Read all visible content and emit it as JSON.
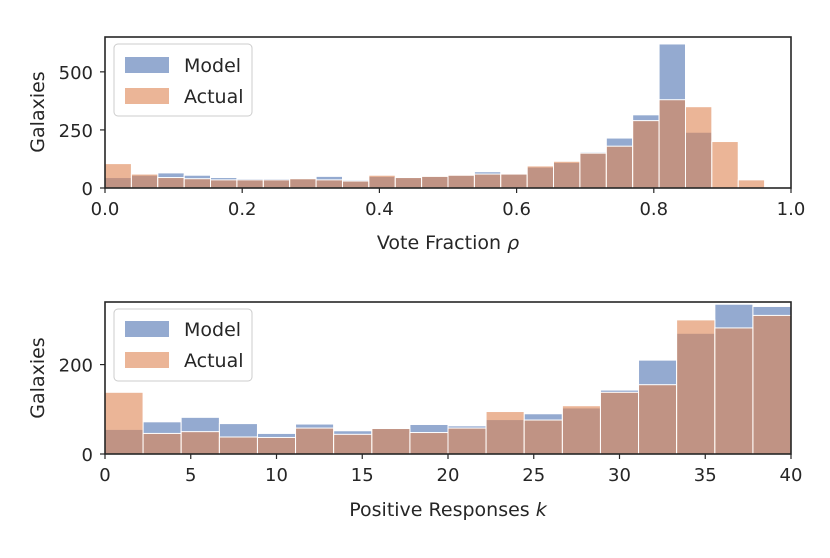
{
  "colors": {
    "model": "#4c72b0",
    "actual": "#dd8452",
    "axis": "#262626"
  },
  "chart_data": [
    {
      "type": "bar",
      "title": "",
      "xlabel": "Vote Fraction ",
      "xlabel_symbol": "ρ",
      "ylabel": "Galaxies",
      "xlim": [
        0.0,
        1.0
      ],
      "ylim": [
        0,
        650
      ],
      "xticks": [
        0.0,
        0.2,
        0.4,
        0.6,
        0.8,
        1.0
      ],
      "xtick_labels": [
        "0.0",
        "0.2",
        "0.4",
        "0.6",
        "0.8",
        "1.0"
      ],
      "yticks": [
        0,
        250,
        500
      ],
      "ytick_labels": [
        "0",
        "250",
        "500"
      ],
      "legend": {
        "position": "top-left",
        "entries": [
          "Model",
          "Actual"
        ]
      },
      "bin_edges": [
        0.0,
        0.0385,
        0.0769,
        0.1154,
        0.1538,
        0.1923,
        0.2308,
        0.2692,
        0.3077,
        0.3462,
        0.3846,
        0.4231,
        0.4615,
        0.5,
        0.5385,
        0.5769,
        0.6154,
        0.6538,
        0.6923,
        0.7308,
        0.7692,
        0.8077,
        0.8462,
        0.8846,
        0.9231,
        0.9615,
        1.0
      ],
      "series": [
        {
          "name": "Model",
          "values": [
            45,
            55,
            65,
            55,
            45,
            40,
            40,
            40,
            50,
            35,
            50,
            45,
            50,
            55,
            70,
            60,
            90,
            110,
            155,
            215,
            315,
            620,
            240,
            0,
            0,
            0
          ]
        },
        {
          "name": "Actual",
          "values": [
            105,
            60,
            45,
            40,
            35,
            35,
            35,
            40,
            35,
            30,
            55,
            45,
            50,
            55,
            60,
            60,
            95,
            115,
            150,
            180,
            290,
            380,
            350,
            200,
            35,
            0
          ]
        }
      ]
    },
    {
      "type": "bar",
      "title": "",
      "xlabel": "Positive Responses ",
      "xlabel_symbol": "k",
      "ylabel": "Galaxies",
      "xlim": [
        0,
        40
      ],
      "ylim": [
        0,
        340
      ],
      "xticks": [
        0,
        5,
        10,
        15,
        20,
        25,
        30,
        35,
        40
      ],
      "xtick_labels": [
        "0",
        "5",
        "10",
        "15",
        "20",
        "25",
        "30",
        "35",
        "40"
      ],
      "yticks": [
        0,
        200
      ],
      "ytick_labels": [
        "0",
        "200"
      ],
      "legend": {
        "position": "top-left",
        "entries": [
          "Model",
          "Actual"
        ]
      },
      "bin_edges": [
        0,
        2.22,
        4.44,
        6.67,
        8.89,
        11.11,
        13.33,
        15.56,
        17.78,
        20.0,
        22.22,
        24.44,
        26.67,
        28.89,
        31.11,
        33.33,
        35.56,
        37.78,
        40.0
      ],
      "series": [
        {
          "name": "Model",
          "values": [
            55,
            72,
            82,
            68,
            46,
            67,
            52,
            57,
            66,
            63,
            77,
            90,
            103,
            143,
            210,
            270,
            335,
            330
          ]
        },
        {
          "name": "Actual",
          "values": [
            138,
            46,
            50,
            38,
            37,
            58,
            44,
            57,
            48,
            58,
            95,
            76,
            108,
            138,
            155,
            300,
            282,
            310
          ]
        }
      ]
    }
  ]
}
